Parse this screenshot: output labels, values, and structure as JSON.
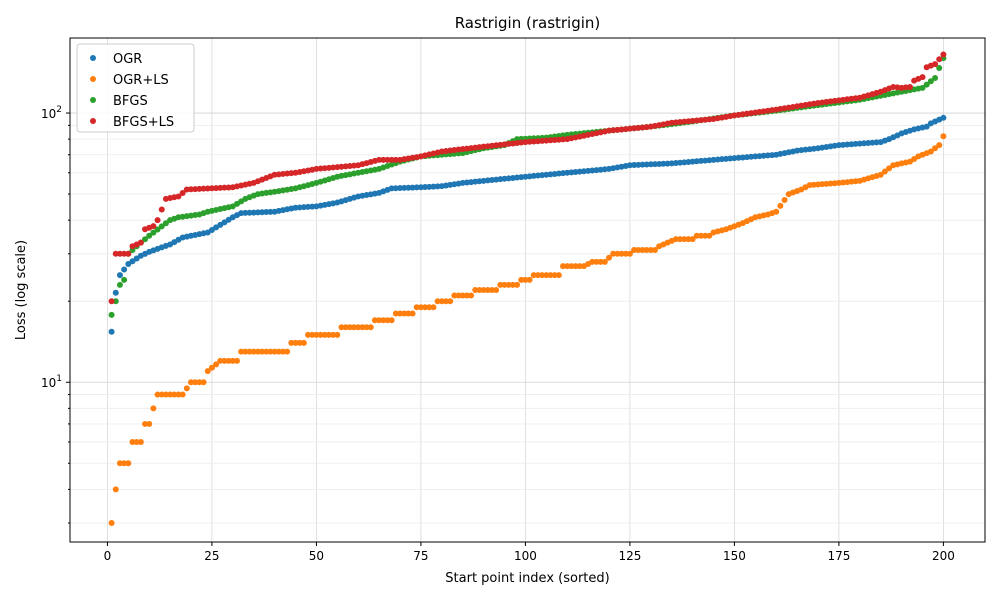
{
  "chart_data": {
    "type": "scatter",
    "title": "Rastrigin (rastrigin)",
    "xlabel": "Start point index (sorted)",
    "ylabel": "Loss (log scale)",
    "xlim": [
      -8.95,
      209.95
    ],
    "ylim": [
      2.55,
      190
    ],
    "yscale": "log",
    "x_ticks": [
      0,
      25,
      50,
      75,
      100,
      125,
      150,
      175,
      200
    ],
    "y_major_ticks": [
      10,
      100
    ],
    "y_tick_labels": [
      "10^1",
      "10^2"
    ],
    "grid": true,
    "legend_position": "upper-left",
    "series": [
      {
        "name": "OGR",
        "color": "#1f77b4",
        "knots": [
          [
            1,
            15.4
          ],
          [
            2,
            21.5
          ],
          [
            3,
            25
          ],
          [
            5,
            27.5
          ],
          [
            8,
            29.5
          ],
          [
            10,
            30.5
          ],
          [
            15,
            32.5
          ],
          [
            18,
            34.5
          ],
          [
            24,
            36
          ],
          [
            30,
            41
          ],
          [
            32,
            42.5
          ],
          [
            40,
            43
          ],
          [
            45,
            44.5
          ],
          [
            50,
            45
          ],
          [
            55,
            46.5
          ],
          [
            60,
            49
          ],
          [
            65,
            50.5
          ],
          [
            68,
            52.5
          ],
          [
            75,
            53
          ],
          [
            80,
            53.5
          ],
          [
            85,
            55
          ],
          [
            95,
            57
          ],
          [
            100,
            58
          ],
          [
            110,
            60
          ],
          [
            120,
            62
          ],
          [
            125,
            64
          ],
          [
            135,
            65
          ],
          [
            140,
            66
          ],
          [
            150,
            68
          ],
          [
            160,
            70
          ],
          [
            165,
            72.5
          ],
          [
            170,
            74
          ],
          [
            175,
            76
          ],
          [
            180,
            77
          ],
          [
            185,
            78
          ],
          [
            187,
            80
          ],
          [
            190,
            84
          ],
          [
            193,
            87
          ],
          [
            196,
            89
          ],
          [
            197,
            91.5
          ],
          [
            200,
            96
          ]
        ]
      },
      {
        "name": "OGR+LS",
        "color": "#ff7f0e",
        "knots": [
          [
            1,
            3
          ],
          [
            2,
            4
          ],
          [
            3,
            5
          ],
          [
            5,
            5
          ],
          [
            6,
            6
          ],
          [
            8,
            6
          ],
          [
            9,
            7
          ],
          [
            10,
            7
          ],
          [
            11,
            8
          ],
          [
            12,
            9
          ],
          [
            18,
            9
          ],
          [
            20,
            10
          ],
          [
            23,
            10
          ],
          [
            24,
            11
          ],
          [
            27,
            12
          ],
          [
            31,
            12
          ],
          [
            32,
            13
          ],
          [
            43,
            13
          ],
          [
            44,
            14
          ],
          [
            47,
            14
          ],
          [
            48,
            15
          ],
          [
            55,
            15
          ],
          [
            56,
            16
          ],
          [
            63,
            16
          ],
          [
            64,
            17
          ],
          [
            68,
            17
          ],
          [
            69,
            18
          ],
          [
            73,
            18
          ],
          [
            74,
            19
          ],
          [
            78,
            19
          ],
          [
            79,
            20
          ],
          [
            82,
            20
          ],
          [
            83,
            21
          ],
          [
            87,
            21
          ],
          [
            88,
            22
          ],
          [
            93,
            22
          ],
          [
            94,
            23
          ],
          [
            98,
            23
          ],
          [
            99,
            24
          ],
          [
            101,
            24
          ],
          [
            102,
            25
          ],
          [
            108,
            25
          ],
          [
            109,
            27
          ],
          [
            114,
            27
          ],
          [
            116,
            28
          ],
          [
            119,
            28
          ],
          [
            120,
            29
          ],
          [
            121,
            30
          ],
          [
            125,
            30
          ],
          [
            126,
            31
          ],
          [
            131,
            31
          ],
          [
            132,
            32
          ],
          [
            134,
            33
          ],
          [
            136,
            34
          ],
          [
            140,
            34
          ],
          [
            141,
            35
          ],
          [
            144,
            35
          ],
          [
            145,
            36
          ],
          [
            148,
            37
          ],
          [
            152,
            39
          ],
          [
            155,
            41
          ],
          [
            158,
            42
          ],
          [
            160,
            43
          ],
          [
            163,
            50
          ],
          [
            166,
            52
          ],
          [
            168,
            54
          ],
          [
            175,
            55
          ],
          [
            180,
            56
          ],
          [
            185,
            59
          ],
          [
            188,
            64
          ],
          [
            192,
            66
          ],
          [
            194,
            69
          ],
          [
            197,
            72
          ],
          [
            199,
            76
          ],
          [
            200,
            82
          ]
        ]
      },
      {
        "name": "BFGS",
        "color": "#2ca02c",
        "knots": [
          [
            1,
            17.8
          ],
          [
            2,
            20
          ],
          [
            3,
            23
          ],
          [
            4,
            24
          ],
          [
            5,
            30
          ],
          [
            7,
            32
          ],
          [
            8,
            33
          ],
          [
            10,
            35
          ],
          [
            15,
            40
          ],
          [
            17,
            41
          ],
          [
            22,
            42
          ],
          [
            24,
            43
          ],
          [
            30,
            45
          ],
          [
            33,
            48
          ],
          [
            36,
            50
          ],
          [
            40,
            51
          ],
          [
            45,
            52.5
          ],
          [
            50,
            55
          ],
          [
            55,
            58
          ],
          [
            60,
            60
          ],
          [
            65,
            62
          ],
          [
            70,
            66
          ],
          [
            75,
            69
          ],
          [
            85,
            71
          ],
          [
            90,
            74
          ],
          [
            95,
            76
          ],
          [
            98,
            80
          ],
          [
            105,
            81
          ],
          [
            110,
            83
          ],
          [
            120,
            86
          ],
          [
            130,
            89
          ],
          [
            140,
            93
          ],
          [
            150,
            98
          ],
          [
            160,
            102
          ],
          [
            170,
            107
          ],
          [
            180,
            112
          ],
          [
            190,
            120
          ],
          [
            195,
            124
          ],
          [
            198,
            135
          ],
          [
            200,
            160
          ]
        ]
      },
      {
        "name": "BFGS+LS",
        "color": "#d62728",
        "knots": [
          [
            1,
            20
          ],
          [
            2,
            30
          ],
          [
            5,
            30
          ],
          [
            6,
            32
          ],
          [
            8,
            33
          ],
          [
            9,
            37
          ],
          [
            11,
            38
          ],
          [
            12,
            40
          ],
          [
            14,
            48
          ],
          [
            17,
            49
          ],
          [
            19,
            52
          ],
          [
            30,
            53
          ],
          [
            35,
            55
          ],
          [
            40,
            59
          ],
          [
            45,
            60
          ],
          [
            50,
            62
          ],
          [
            60,
            64
          ],
          [
            65,
            67
          ],
          [
            70,
            67
          ],
          [
            75,
            69
          ],
          [
            80,
            72
          ],
          [
            90,
            75
          ],
          [
            100,
            78
          ],
          [
            110,
            80
          ],
          [
            120,
            86
          ],
          [
            130,
            89
          ],
          [
            135,
            92
          ],
          [
            145,
            95
          ],
          [
            150,
            98
          ],
          [
            160,
            103
          ],
          [
            170,
            109
          ],
          [
            180,
            114
          ],
          [
            185,
            120
          ],
          [
            188,
            125
          ],
          [
            190,
            124
          ],
          [
            192,
            125
          ],
          [
            193,
            132
          ],
          [
            195,
            136
          ],
          [
            196,
            148
          ],
          [
            198,
            152
          ],
          [
            200,
            165
          ]
        ]
      }
    ]
  }
}
